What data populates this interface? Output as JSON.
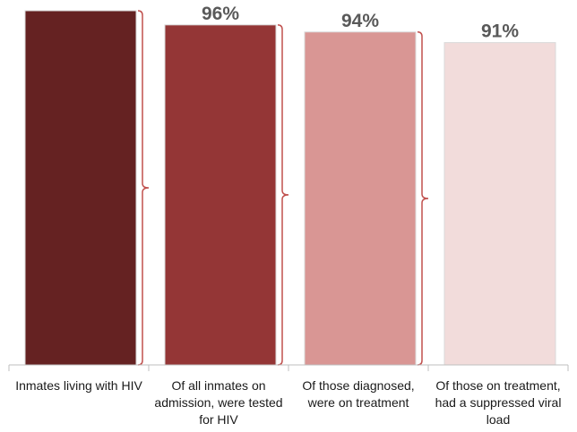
{
  "chart_data": {
    "type": "bar",
    "categories": [
      [
        "Inmates living with HIV"
      ],
      [
        "Of all inmates on",
        "admission, were tested",
        "for HIV"
      ],
      [
        "Of those diagnosed,",
        "were on treatment"
      ],
      [
        "Of those on treatment,",
        "had a suppressed viral",
        "load"
      ]
    ],
    "values": [
      100,
      96,
      94,
      91
    ],
    "data_labels": [
      "",
      "96%",
      "94%",
      "91%"
    ],
    "colors": [
      "#652222",
      "#943636",
      "#d99694",
      "#f2dcdb"
    ],
    "bracket_color": "#c0504d",
    "ylim": [
      0,
      100
    ],
    "title": "",
    "xlabel": "",
    "ylabel": "",
    "legend": "none",
    "grid": false
  }
}
